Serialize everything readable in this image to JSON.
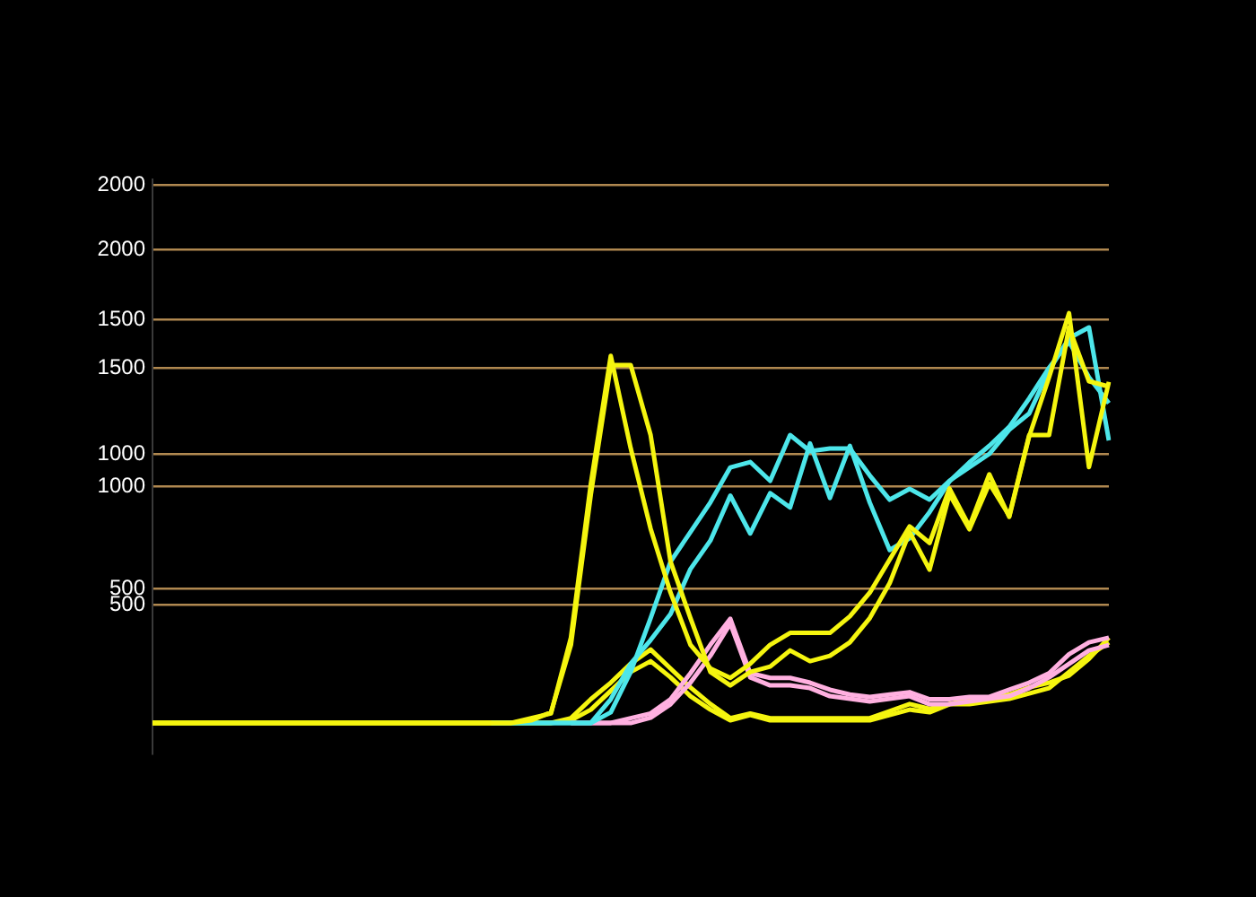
{
  "chart_data": {
    "type": "line",
    "categories": [
      null,
      null,
      null,
      null,
      null,
      null,
      null,
      null,
      null,
      null,
      null,
      null,
      null,
      null,
      null,
      null,
      null,
      null,
      null,
      null,
      null,
      null,
      null,
      null,
      null,
      null,
      null,
      null,
      null,
      null,
      null,
      null,
      null,
      null,
      null,
      null,
      null,
      null,
      null,
      null,
      null,
      null,
      null,
      null,
      null,
      null,
      null,
      null,
      null
    ],
    "series": [
      {
        "color": "#f5f50f",
        "values": [
          0,
          0,
          0,
          0,
          0,
          0,
          0,
          0,
          0,
          0,
          0,
          0,
          0,
          0,
          0,
          0,
          0,
          0,
          0,
          20,
          40,
          360,
          1010,
          1550,
          1160,
          820,
          550,
          330,
          230,
          190,
          250,
          330,
          380,
          380,
          380,
          450,
          550,
          690,
          830,
          760,
          990,
          830,
          1050,
          870,
          1210,
          1460,
          1730,
          1080,
          1440
        ]
      },
      {
        "color": "#f5f50f",
        "axis": "y2",
        "values": [
          0,
          0,
          0,
          0,
          0,
          0,
          0,
          0,
          0,
          0,
          0,
          0,
          0,
          0,
          0,
          0,
          0,
          0,
          0,
          10,
          40,
          290,
          850,
          1330,
          1330,
          1070,
          600,
          390,
          190,
          140,
          190,
          210,
          270,
          230,
          250,
          300,
          390,
          520,
          710,
          570,
          850,
          720,
          890,
          770,
          1070,
          1070,
          1470,
          1270,
          1250
        ]
      },
      {
        "color": "#4de6ea",
        "values": [
          null,
          null,
          null,
          null,
          null,
          null,
          null,
          null,
          null,
          null,
          null,
          null,
          null,
          null,
          null,
          null,
          null,
          0,
          0,
          0,
          0,
          0,
          0,
          100,
          250,
          350,
          460,
          650,
          770,
          960,
          800,
          970,
          910,
          1180,
          950,
          1170,
          930,
          730,
          780,
          890,
          1020,
          1100,
          1170,
          1250,
          1370,
          1500,
          1610,
          1460,
          1350
        ]
      },
      {
        "color": "#4de6ea",
        "axis": "y2",
        "values": [
          null,
          null,
          null,
          null,
          null,
          null,
          null,
          null,
          null,
          null,
          null,
          null,
          null,
          null,
          null,
          null,
          null,
          0,
          0,
          0,
          0,
          0,
          0,
          40,
          190,
          390,
          600,
          710,
          820,
          950,
          970,
          900,
          1070,
          1010,
          1020,
          1020,
          920,
          830,
          870,
          830,
          900,
          950,
          1000,
          1090,
          1150,
          1310,
          1430,
          1470,
          1050
        ]
      },
      {
        "color": "#ffb0e0",
        "values": [
          null,
          null,
          null,
          null,
          null,
          null,
          null,
          null,
          null,
          null,
          null,
          null,
          null,
          null,
          null,
          null,
          null,
          null,
          null,
          null,
          null,
          0,
          0,
          0,
          20,
          40,
          100,
          210,
          330,
          440,
          210,
          190,
          190,
          170,
          140,
          120,
          110,
          120,
          130,
          100,
          100,
          110,
          110,
          140,
          170,
          210,
          290,
          340,
          360
        ]
      },
      {
        "color": "#ffb0e0",
        "axis": "y2",
        "values": [
          null,
          null,
          null,
          null,
          null,
          null,
          null,
          null,
          null,
          null,
          null,
          null,
          null,
          null,
          null,
          null,
          null,
          null,
          null,
          null,
          null,
          0,
          0,
          0,
          0,
          20,
          70,
          150,
          250,
          370,
          170,
          140,
          140,
          130,
          100,
          90,
          80,
          90,
          100,
          70,
          70,
          80,
          90,
          100,
          130,
          170,
          220,
          270,
          290
        ]
      },
      {
        "color": "#f5f50f",
        "values": [
          0,
          0,
          0,
          0,
          0,
          0,
          0,
          0,
          0,
          0,
          0,
          0,
          0,
          0,
          0,
          0,
          0,
          0,
          0,
          0,
          0,
          20,
          100,
          170,
          250,
          310,
          230,
          150,
          80,
          20,
          40,
          20,
          20,
          20,
          20,
          20,
          20,
          50,
          80,
          60,
          80,
          100,
          100,
          120,
          150,
          170,
          200,
          270,
          360
        ]
      },
      {
        "color": "#f5f50f",
        "axis": "y2",
        "values": [
          0,
          0,
          0,
          0,
          0,
          0,
          0,
          0,
          0,
          0,
          0,
          0,
          0,
          0,
          0,
          0,
          0,
          0,
          0,
          0,
          0,
          10,
          50,
          120,
          190,
          230,
          170,
          100,
          50,
          10,
          30,
          10,
          10,
          10,
          10,
          10,
          10,
          30,
          50,
          40,
          70,
          70,
          80,
          90,
          110,
          130,
          190,
          250,
          300
        ]
      }
    ],
    "ylim": [
      -129,
      2295
    ],
    "yticks": [
      500,
      1000,
      1500,
      2000
    ],
    "y2lim": [
      -113,
      2020
    ],
    "y2ticks": [
      500,
      1000,
      1500,
      2000
    ],
    "grid": "y",
    "marker": "none",
    "line_style": "solid"
  }
}
